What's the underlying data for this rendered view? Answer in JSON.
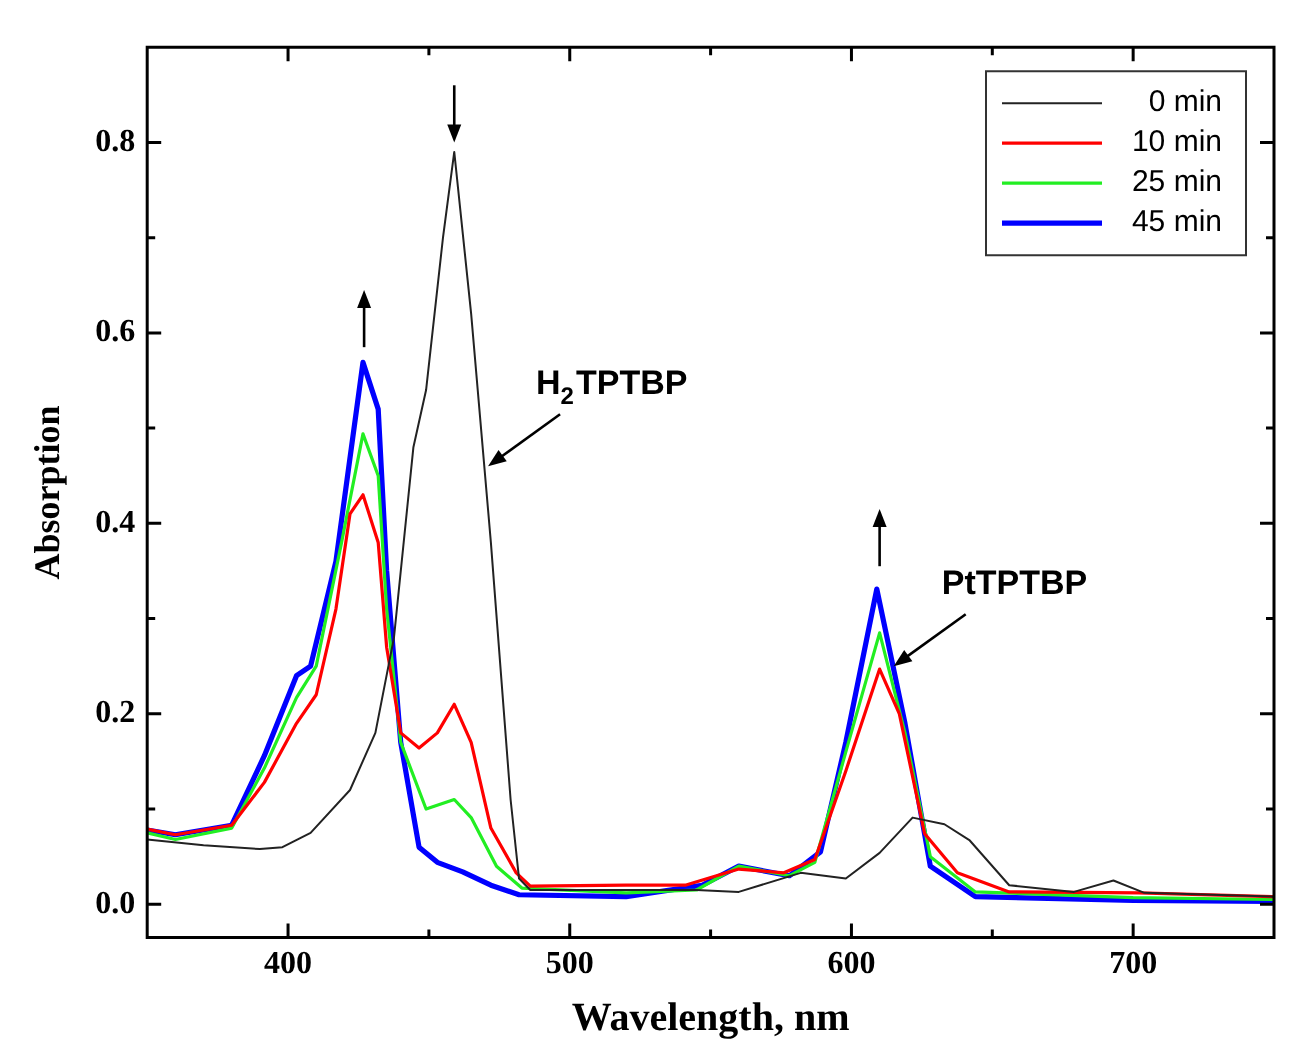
{
  "chart_data": {
    "type": "line",
    "xlabel": "Wavelength, nm",
    "ylabel": "Absorption",
    "xlim": [
      350,
      750
    ],
    "xticks": [
      400,
      {
        "value": 450,
        "label": null
      },
      500,
      {
        "value": 550,
        "label": null
      },
      600,
      {
        "value": 650,
        "label": null
      },
      700
    ],
    "ylim": [
      -0.035,
      0.9
    ],
    "yticks": [
      {
        "value": 0,
        "label": "0.0"
      },
      {
        "value": 0.1,
        "label": null
      },
      0.2,
      {
        "value": 0.3,
        "label": null
      },
      0.4,
      {
        "value": 0.5,
        "label": null
      },
      0.6,
      {
        "value": 0.7,
        "label": null
      },
      0.8
    ],
    "grid": false,
    "legend": "top right",
    "marker": "none",
    "line_style": "solid",
    "annotations": [
      {
        "text": "H$_{2}$TPTBP",
        "x": 471,
        "y": 0.46
      },
      {
        "text": "PtTPTBP",
        "x": 615,
        "y": 0.25
      }
    ],
    "series": [
      {
        "name": "0 min",
        "color": "#222222",
        "x": [
          350,
          370,
          390,
          398,
          408,
          422,
          431,
          437.6,
          444.5,
          449,
          455,
          459,
          465,
          472,
          479,
          482,
          486,
          520,
          545,
          560,
          582,
          598,
          610,
          621.7,
          633,
          642,
          656,
          679,
          693,
          704,
          750
        ],
        "values": [
          0.068,
          0.062,
          0.058,
          0.06,
          0.075,
          0.12,
          0.18,
          0.28,
          0.48,
          0.54,
          0.7,
          0.79,
          0.62,
          0.38,
          0.11,
          0.027,
          0.015,
          0.015,
          0.015,
          0.013,
          0.033,
          0.027,
          0.054,
          0.091,
          0.084,
          0.067,
          0.02,
          0.013,
          0.025,
          0.012,
          0.008
        ]
      },
      {
        "name": "10 min",
        "color": "#ff0000",
        "x": [
          350,
          360,
          380,
          391.6,
          403,
          410,
          417,
          422,
          426.6,
          432,
          435,
          440,
          446.5,
          453,
          459,
          465,
          472,
          481,
          486,
          520,
          541,
          560,
          576,
          587,
          598,
          610,
          617,
          626,
          637.6,
          656,
          702,
          750
        ],
        "values": [
          0.079,
          0.073,
          0.083,
          0.128,
          0.19,
          0.22,
          0.31,
          0.41,
          0.43,
          0.38,
          0.27,
          0.18,
          0.164,
          0.18,
          0.21,
          0.17,
          0.08,
          0.033,
          0.019,
          0.02,
          0.02,
          0.037,
          0.033,
          0.047,
          0.14,
          0.247,
          0.2,
          0.074,
          0.033,
          0.013,
          0.012,
          0.008
        ]
      },
      {
        "name": "25 min",
        "color": "#22ee22",
        "x": [
          350,
          360,
          380,
          391.6,
          403,
          410,
          419,
          426.6,
          432,
          435,
          440,
          449,
          459,
          465,
          474,
          483,
          520,
          545,
          560,
          578,
          587,
          598,
          610,
          619,
          628,
          644,
          700,
          750
        ],
        "values": [
          0.075,
          0.068,
          0.08,
          0.143,
          0.217,
          0.25,
          0.38,
          0.494,
          0.45,
          0.31,
          0.17,
          0.1,
          0.11,
          0.091,
          0.04,
          0.017,
          0.012,
          0.015,
          0.04,
          0.03,
          0.044,
          0.16,
          0.285,
          0.18,
          0.05,
          0.013,
          0.007,
          0.005
        ]
      },
      {
        "name": "45 min",
        "color": "#0000ff",
        "x": [
          350,
          360,
          380,
          391.6,
          403,
          408,
          417,
          426.6,
          432,
          435,
          440,
          446.5,
          453,
          462,
          472,
          482,
          520,
          547,
          560,
          578,
          589,
          598,
          609,
          619,
          628,
          644,
          700,
          750
        ],
        "values": [
          0.078,
          0.073,
          0.083,
          0.156,
          0.24,
          0.25,
          0.36,
          0.569,
          0.52,
          0.35,
          0.17,
          0.06,
          0.044,
          0.034,
          0.02,
          0.01,
          0.008,
          0.02,
          0.04,
          0.03,
          0.055,
          0.17,
          0.331,
          0.19,
          0.04,
          0.008,
          0.004,
          0.003
        ]
      }
    ]
  }
}
